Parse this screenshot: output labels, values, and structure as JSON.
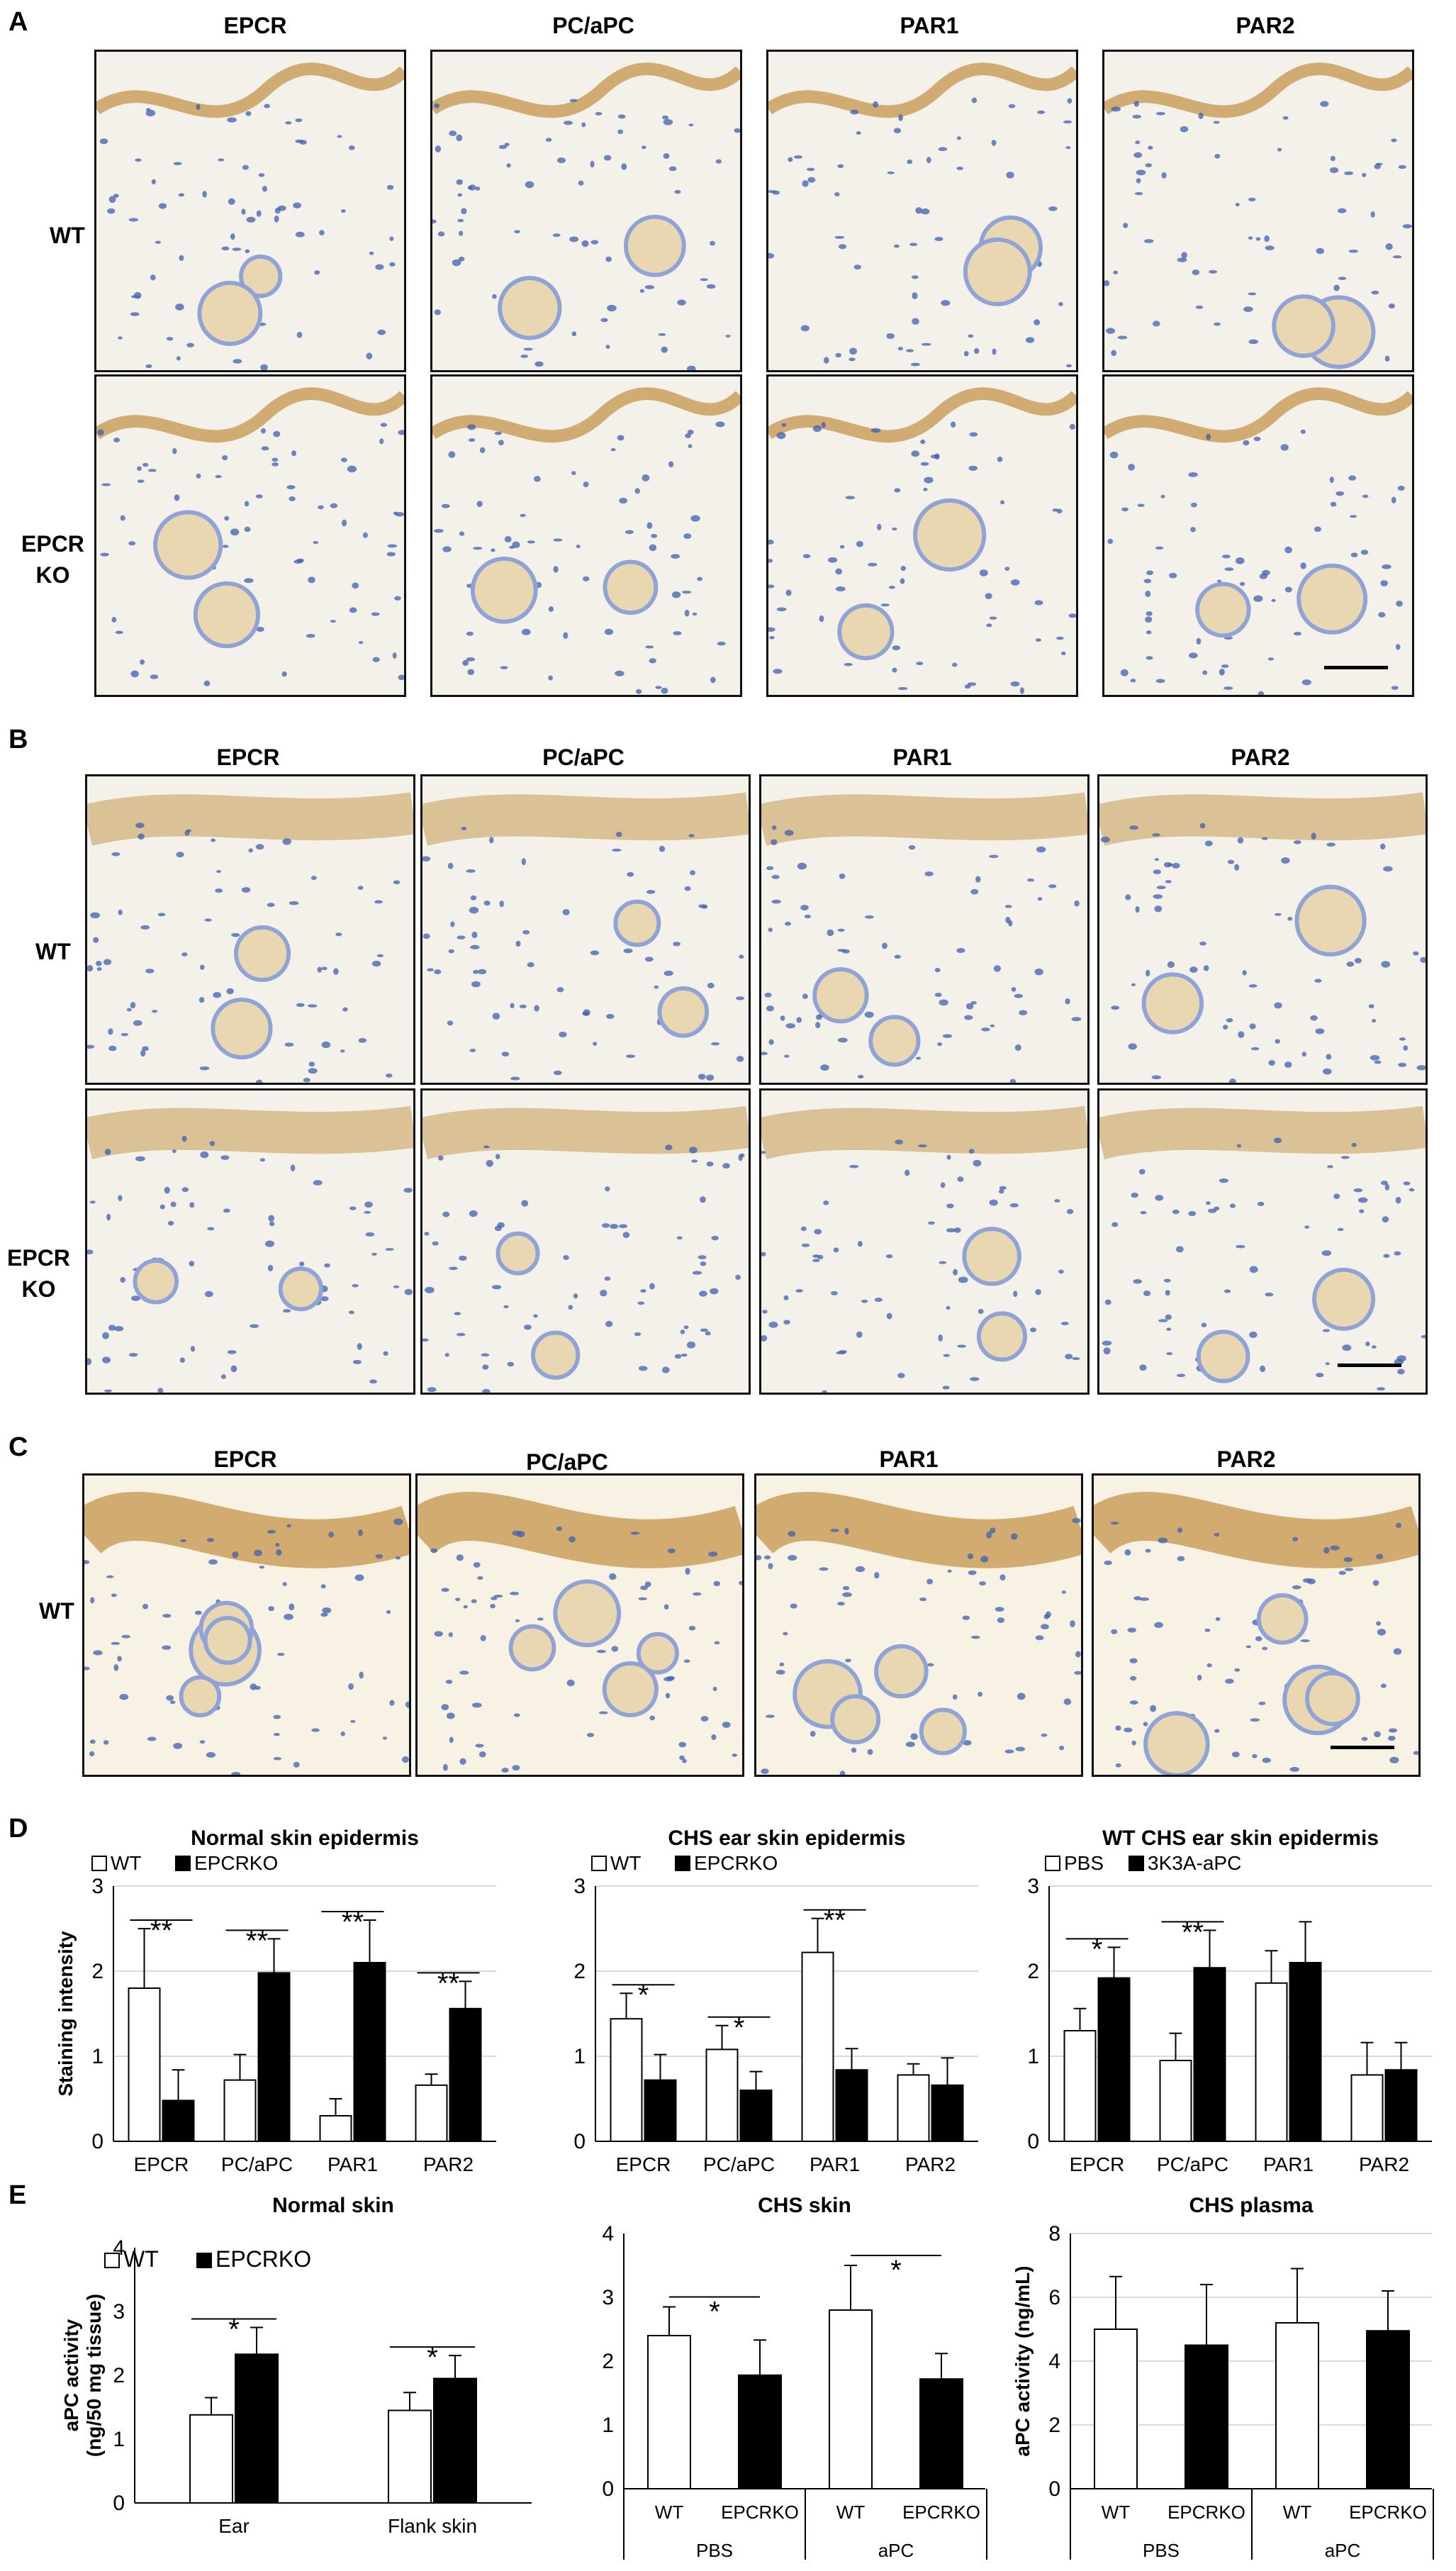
{
  "panels": {
    "A": {
      "label": "A",
      "columns": [
        "EPCR",
        "PC/aPC",
        "PAR1",
        "PAR2"
      ],
      "rows": [
        "WT",
        "EPCR KO"
      ]
    },
    "B": {
      "label": "B",
      "columns": [
        "EPCR",
        "PC/aPC",
        "PAR1",
        "PAR2"
      ],
      "rows": [
        "WT",
        "EPCR KO"
      ]
    },
    "C": {
      "label": "C",
      "columns": [
        "EPCR",
        "PC/aPC",
        "PAR1",
        "PAR2"
      ],
      "rows": [
        "WT"
      ]
    },
    "D": {
      "label": "D"
    },
    "E": {
      "label": "E"
    }
  },
  "row_labels": {
    "wt": "WT",
    "epcr_line1": "EPCR",
    "epcr_line2": "KO"
  },
  "colors": {
    "bar_open": "#ffffff",
    "bar_filled": "#000000",
    "stain_brown": "#b07a2a",
    "nuclei_blue": "#3d5fb0",
    "grid": "#d9d9d9"
  },
  "chart_data": [
    {
      "id": "D1",
      "type": "bar",
      "title": "Normal skin epidermis",
      "ylabel": "Staining intensity",
      "ylim": [
        0,
        3
      ],
      "yticks": [
        0,
        1,
        2,
        3
      ],
      "categories": [
        "EPCR",
        "PC/aPC",
        "PAR1",
        "PAR2"
      ],
      "series": [
        {
          "name": "WT",
          "values": [
            1.8,
            0.72,
            0.3,
            0.66
          ],
          "err": [
            0.7,
            0.3,
            0.2,
            0.13
          ]
        },
        {
          "name": "EPCRKO",
          "values": [
            0.48,
            1.98,
            2.1,
            1.56
          ],
          "err": [
            0.36,
            0.4,
            0.5,
            0.32
          ]
        }
      ],
      "significance": [
        {
          "category": "EPCR",
          "mark": "**"
        },
        {
          "category": "PC/aPC",
          "mark": "**"
        },
        {
          "category": "PAR1",
          "mark": "**"
        },
        {
          "category": "PAR2",
          "mark": "**"
        }
      ],
      "grid": true,
      "legend": "top-left"
    },
    {
      "id": "D2",
      "type": "bar",
      "title": "CHS ear skin epidermis",
      "ylabel": "",
      "ylim": [
        0,
        3
      ],
      "yticks": [
        0,
        1,
        2,
        3
      ],
      "categories": [
        "EPCR",
        "PC/aPC",
        "PAR1",
        "PAR2"
      ],
      "series": [
        {
          "name": "WT",
          "values": [
            1.44,
            1.08,
            2.22,
            0.78
          ],
          "err": [
            0.3,
            0.28,
            0.4,
            0.13
          ]
        },
        {
          "name": "EPCRKO",
          "values": [
            0.72,
            0.6,
            0.84,
            0.66
          ],
          "err": [
            0.3,
            0.22,
            0.25,
            0.32
          ]
        }
      ],
      "significance": [
        {
          "category": "EPCR",
          "mark": "*"
        },
        {
          "category": "PC/aPC",
          "mark": "*"
        },
        {
          "category": "PAR1",
          "mark": "**"
        }
      ],
      "grid": true,
      "legend": "top-left"
    },
    {
      "id": "D3",
      "type": "bar",
      "title": "WT CHS ear skin epidermis",
      "ylabel": "",
      "ylim": [
        0,
        3
      ],
      "yticks": [
        0,
        1,
        2,
        3
      ],
      "categories": [
        "EPCR",
        "PC/aPC",
        "PAR1",
        "PAR2"
      ],
      "series": [
        {
          "name": "PBS",
          "values": [
            1.3,
            0.95,
            1.86,
            0.78
          ],
          "err": [
            0.26,
            0.32,
            0.38,
            0.38
          ]
        },
        {
          "name": "3K3A-aPC",
          "values": [
            1.92,
            2.04,
            2.1,
            0.84
          ],
          "err": [
            0.36,
            0.44,
            0.48,
            0.32
          ]
        }
      ],
      "significance": [
        {
          "category": "EPCR",
          "mark": "*"
        },
        {
          "category": "PC/aPC",
          "mark": "**"
        }
      ],
      "grid": true,
      "legend": "top-left"
    },
    {
      "id": "E1",
      "type": "bar",
      "title": "Normal skin",
      "ylabel": "aPC activity",
      "ylabel2": "(ng/50 mg tissue)",
      "ylim": [
        0,
        4
      ],
      "yticks": [
        0,
        1,
        2,
        3,
        4
      ],
      "categories": [
        "Ear",
        "Flank skin"
      ],
      "series": [
        {
          "name": "WT",
          "values": [
            1.38,
            1.45
          ],
          "err": [
            0.27,
            0.28
          ]
        },
        {
          "name": "EPCRKO",
          "values": [
            2.33,
            1.95
          ],
          "err": [
            0.42,
            0.36
          ]
        }
      ],
      "significance": [
        {
          "category": "Ear",
          "mark": "*"
        },
        {
          "category": "Flank skin",
          "mark": "*"
        }
      ],
      "grid": false,
      "legend": "top-left"
    },
    {
      "id": "E2",
      "type": "bar",
      "title": "CHS skin",
      "ylabel": "",
      "ylim": [
        0,
        4
      ],
      "yticks": [
        0,
        1,
        2,
        3,
        4
      ],
      "groups": [
        "PBS",
        "aPC"
      ],
      "categories": [
        "WT",
        "EPCRKO",
        "WT",
        "EPCRKO"
      ],
      "values": [
        2.4,
        1.78,
        2.8,
        1.72
      ],
      "err": [
        0.45,
        0.55,
        0.7,
        0.4
      ],
      "fill": [
        "open",
        "filled",
        "open",
        "filled"
      ],
      "significance": [
        {
          "between": [
            "PBS WT",
            "PBS EPCRKO"
          ],
          "mark": "*"
        },
        {
          "between": [
            "aPC WT",
            "aPC EPCRKO"
          ],
          "mark": "*"
        }
      ],
      "grid": false
    },
    {
      "id": "E3",
      "type": "bar",
      "title": "CHS plasma",
      "ylabel": "aPC activity (ng/mL)",
      "ylim": [
        0,
        8
      ],
      "yticks": [
        0,
        2,
        4,
        6,
        8
      ],
      "groups": [
        "PBS",
        "aPC"
      ],
      "categories": [
        "WT",
        "EPCRKO",
        "WT",
        "EPCRKO"
      ],
      "values": [
        5.0,
        4.5,
        5.2,
        4.95
      ],
      "err": [
        1.65,
        1.9,
        1.7,
        1.25
      ],
      "fill": [
        "open",
        "filled",
        "open",
        "filled"
      ],
      "grid": true
    }
  ]
}
